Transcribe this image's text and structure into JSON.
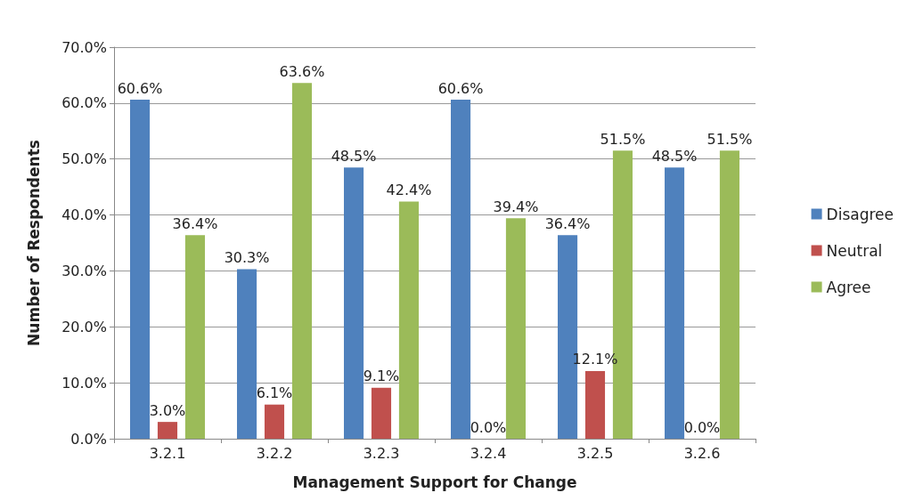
{
  "chart_data": {
    "type": "bar",
    "xlabel": "Management Support for Change",
    "ylabel": "Number of Respondents",
    "categories": [
      "3.2.1",
      "3.2.2",
      "3.2.3",
      "3.2.4",
      "3.2.5",
      "3.2.6"
    ],
    "series": [
      {
        "name": "Disagree",
        "color": "#4f81bd",
        "values": [
          60.6,
          30.3,
          48.5,
          60.6,
          36.4,
          48.5
        ],
        "value_labels": [
          "60.6%",
          "30.3%",
          "48.5%",
          "60.6%",
          "36.4%",
          "48.5%"
        ]
      },
      {
        "name": "Neutral",
        "color": "#c0504d",
        "values": [
          3.0,
          6.1,
          9.1,
          0.0,
          12.1,
          0.0
        ],
        "value_labels": [
          "3.0%",
          "6.1%",
          "9.1%",
          "0.0%",
          "12.1%",
          "0.0%"
        ]
      },
      {
        "name": "Agree",
        "color": "#9bbb59",
        "values": [
          36.4,
          63.6,
          42.4,
          39.4,
          51.5,
          51.5
        ],
        "value_labels": [
          "36.4%",
          "63.6%",
          "42.4%",
          "39.4%",
          "51.5%",
          "51.5%"
        ]
      }
    ],
    "ylim": [
      0,
      70
    ],
    "yticks": [
      {
        "value": 0,
        "label": "0.0%"
      },
      {
        "value": 10,
        "label": "10.0%"
      },
      {
        "value": 20,
        "label": "20.0%"
      },
      {
        "value": 30,
        "label": "30.0%"
      },
      {
        "value": 40,
        "label": "40.0%"
      },
      {
        "value": 50,
        "label": "50.0%"
      },
      {
        "value": 60,
        "label": "60.0%"
      },
      {
        "value": 70,
        "label": "70.0%"
      }
    ],
    "grid": "y",
    "legend": "right"
  }
}
